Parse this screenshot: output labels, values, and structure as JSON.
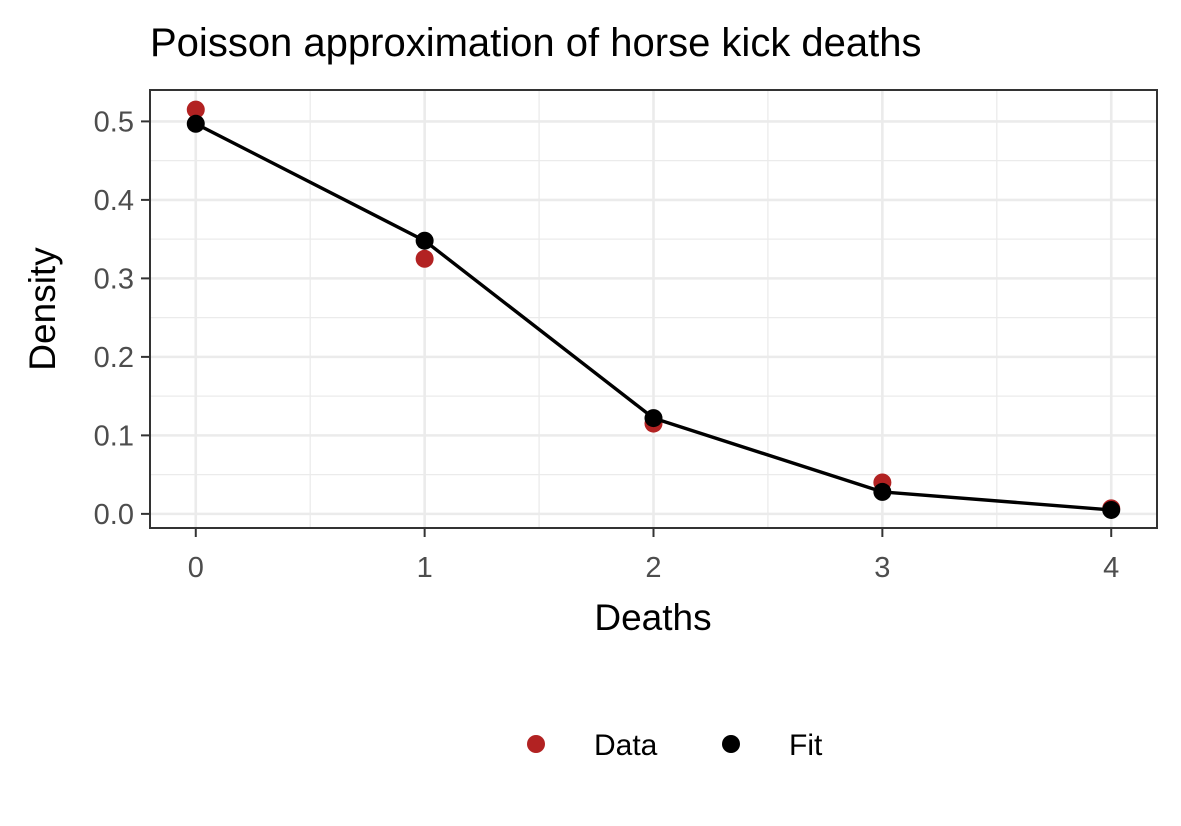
{
  "chart_data": {
    "type": "line",
    "title": "Poisson approximation of horse kick deaths",
    "xlabel": "Deaths",
    "ylabel": "Density",
    "xlim": [
      -0.2,
      4.2
    ],
    "ylim": [
      -0.018,
      0.54
    ],
    "x_ticks": [
      0,
      1,
      2,
      3,
      4
    ],
    "x_tick_labels": [
      "0",
      "1",
      "2",
      "3",
      "4"
    ],
    "y_ticks": [
      0.0,
      0.1,
      0.2,
      0.3,
      0.4,
      0.5
    ],
    "y_tick_labels": [
      "0.0",
      "0.1",
      "0.2",
      "0.3",
      "0.4",
      "0.5"
    ],
    "grid": true,
    "legend_position": "bottom",
    "x": [
      0,
      1,
      2,
      3,
      4
    ],
    "series": [
      {
        "name": "Data",
        "values": [
          0.515,
          0.325,
          0.115,
          0.04,
          0.007
        ],
        "color": "#b22222",
        "style": "points"
      },
      {
        "name": "Fit",
        "values": [
          0.497,
          0.348,
          0.122,
          0.028,
          0.005
        ],
        "color": "#000000",
        "style": "line+points"
      }
    ]
  }
}
